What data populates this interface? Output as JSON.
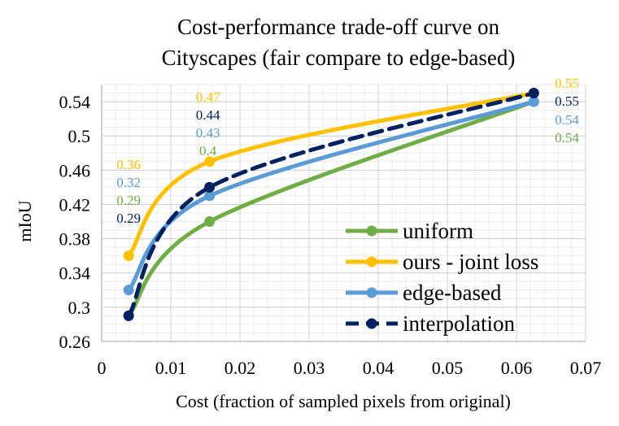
{
  "chart_data": {
    "type": "line",
    "title_lines": [
      "Cost-performance trade-off curve on",
      "Cityscapes (fair compare to edge-based)"
    ],
    "xlabel": "Cost (fraction of sampled pixels from original)",
    "ylabel": "mIoU",
    "xlim": [
      0,
      0.07
    ],
    "ylim": [
      0.26,
      0.56
    ],
    "xticks": [
      0,
      0.01,
      0.02,
      0.03,
      0.04,
      0.05,
      0.06,
      0.07
    ],
    "xtick_labels": [
      "0",
      "0.01",
      "0.02",
      "0.03",
      "0.04",
      "0.05",
      "0.06",
      "0.07"
    ],
    "yticks": [
      0.26,
      0.3,
      0.34,
      0.38,
      0.42,
      0.46,
      0.5,
      0.54
    ],
    "ytick_labels": [
      "0.26",
      "0.3",
      "0.34",
      "0.38",
      "0.42",
      "0.46",
      "0.5",
      "0.54"
    ],
    "grid": true,
    "legend_position": "bottom-right",
    "x": [
      0.0039,
      0.0156,
      0.0625
    ],
    "series": [
      {
        "name": "uniform",
        "color": "#70AD47",
        "dashed": false,
        "y": [
          0.29,
          0.4,
          0.54
        ],
        "labels": [
          "0.29",
          "0.4",
          "0.54"
        ]
      },
      {
        "name": "ours - joint loss",
        "color": "#FFC000",
        "dashed": false,
        "y": [
          0.36,
          0.47,
          0.55
        ],
        "labels": [
          "0.36",
          "0.47",
          "0.55"
        ]
      },
      {
        "name": "edge-based",
        "color": "#5B9BD5",
        "dashed": false,
        "y": [
          0.32,
          0.43,
          0.54
        ],
        "labels": [
          "0.32",
          "0.43",
          "0.54"
        ]
      },
      {
        "name": "interpolation",
        "color": "#002060",
        "dashed": true,
        "y": [
          0.29,
          0.44,
          0.55
        ],
        "labels": [
          "0.29",
          "0.44",
          "0.55"
        ]
      }
    ]
  }
}
